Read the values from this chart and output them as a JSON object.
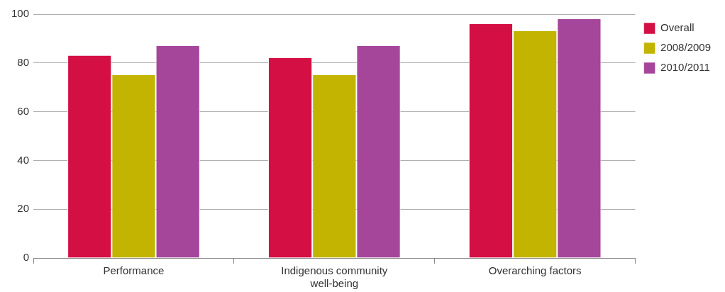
{
  "chart_data": {
    "type": "bar",
    "categories": [
      "Performance",
      "Indigenous community well-being",
      "Overarching factors"
    ],
    "series": [
      {
        "name": "Overall",
        "color": "#d40f44",
        "values": [
          83,
          82,
          96
        ]
      },
      {
        "name": "2008/2009",
        "color": "#c2b400",
        "values": [
          75,
          75,
          93
        ]
      },
      {
        "name": "2010/2011",
        "color": "#a5469b",
        "values": [
          87,
          87,
          98
        ]
      }
    ],
    "ylim": [
      0,
      100
    ],
    "yticks": [
      0,
      20,
      40,
      60,
      80,
      100
    ],
    "grid": "y",
    "legend": "top right"
  }
}
